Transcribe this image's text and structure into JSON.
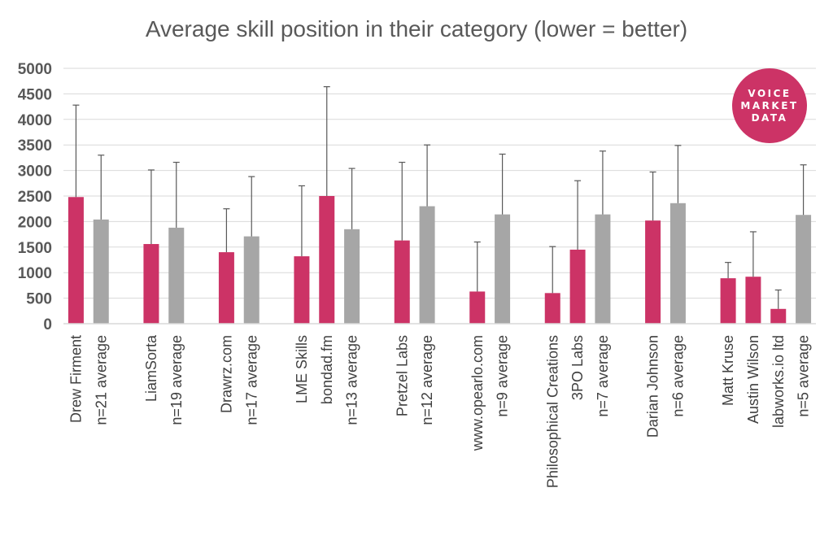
{
  "colors": {
    "highlight": "#cc3366",
    "average": "#a6a6a6",
    "grid": "#d9d9d9",
    "error": "#595959",
    "logo": "#cc3366"
  },
  "logo": {
    "lines": [
      "VOICE",
      "MARKET",
      "DATA"
    ]
  },
  "chart_data": {
    "type": "bar",
    "title": "Average skill position in their category (lower = better)",
    "xlabel": "",
    "ylabel": "",
    "ylim": [
      0,
      5000
    ],
    "yticks": [
      0,
      500,
      1000,
      1500,
      2000,
      2500,
      3000,
      3500,
      4000,
      4500,
      5000
    ],
    "grid": true,
    "error_bars": true,
    "groups": [
      {
        "bars": [
          {
            "label": "Drew Firment",
            "kind": "highlight",
            "value": 2480,
            "error_high": 4280
          },
          {
            "label": "n=21 average",
            "kind": "average",
            "value": 2040,
            "error_high": 3300
          }
        ]
      },
      {
        "bars": [
          {
            "label": "LiamSorta",
            "kind": "highlight",
            "value": 1560,
            "error_high": 3010
          },
          {
            "label": "n=19 average",
            "kind": "average",
            "value": 1880,
            "error_high": 3160
          }
        ]
      },
      {
        "bars": [
          {
            "label": "Drawrz.com",
            "kind": "highlight",
            "value": 1400,
            "error_high": 2250
          },
          {
            "label": "n=17 average",
            "kind": "average",
            "value": 1710,
            "error_high": 2880
          }
        ]
      },
      {
        "bars": [
          {
            "label": "LME Skills",
            "kind": "highlight",
            "value": 1320,
            "error_high": 2700
          },
          {
            "label": "bondad.fm",
            "kind": "highlight",
            "value": 2500,
            "error_high": 4640
          },
          {
            "label": "n=13 average",
            "kind": "average",
            "value": 1850,
            "error_high": 3040
          }
        ]
      },
      {
        "bars": [
          {
            "label": "Pretzel Labs",
            "kind": "highlight",
            "value": 1630,
            "error_high": 3160
          },
          {
            "label": "n=12 average",
            "kind": "average",
            "value": 2300,
            "error_high": 3500
          }
        ]
      },
      {
        "bars": [
          {
            "label": "www.opearlo.com",
            "kind": "highlight",
            "value": 630,
            "error_high": 1600
          },
          {
            "label": "n=9 average",
            "kind": "average",
            "value": 2140,
            "error_high": 3320
          }
        ]
      },
      {
        "bars": [
          {
            "label": "Philosophical Creations",
            "kind": "highlight",
            "value": 600,
            "error_high": 1510
          },
          {
            "label": "3PO Labs",
            "kind": "highlight",
            "value": 1450,
            "error_high": 2800
          },
          {
            "label": "n=7 average",
            "kind": "average",
            "value": 2140,
            "error_high": 3380
          }
        ]
      },
      {
        "bars": [
          {
            "label": "Darian Johnson",
            "kind": "highlight",
            "value": 2020,
            "error_high": 2970
          },
          {
            "label": "n=6 average",
            "kind": "average",
            "value": 2360,
            "error_high": 3490
          }
        ]
      },
      {
        "bars": [
          {
            "label": "Matt Kruse",
            "kind": "highlight",
            "value": 890,
            "error_high": 1200
          },
          {
            "label": "Austin Wilson",
            "kind": "highlight",
            "value": 920,
            "error_high": 1800
          },
          {
            "label": "labworks.io ltd",
            "kind": "highlight",
            "value": 290,
            "error_high": 660
          },
          {
            "label": "n=5 average",
            "kind": "average",
            "value": 2130,
            "error_high": 3110
          }
        ]
      }
    ]
  }
}
